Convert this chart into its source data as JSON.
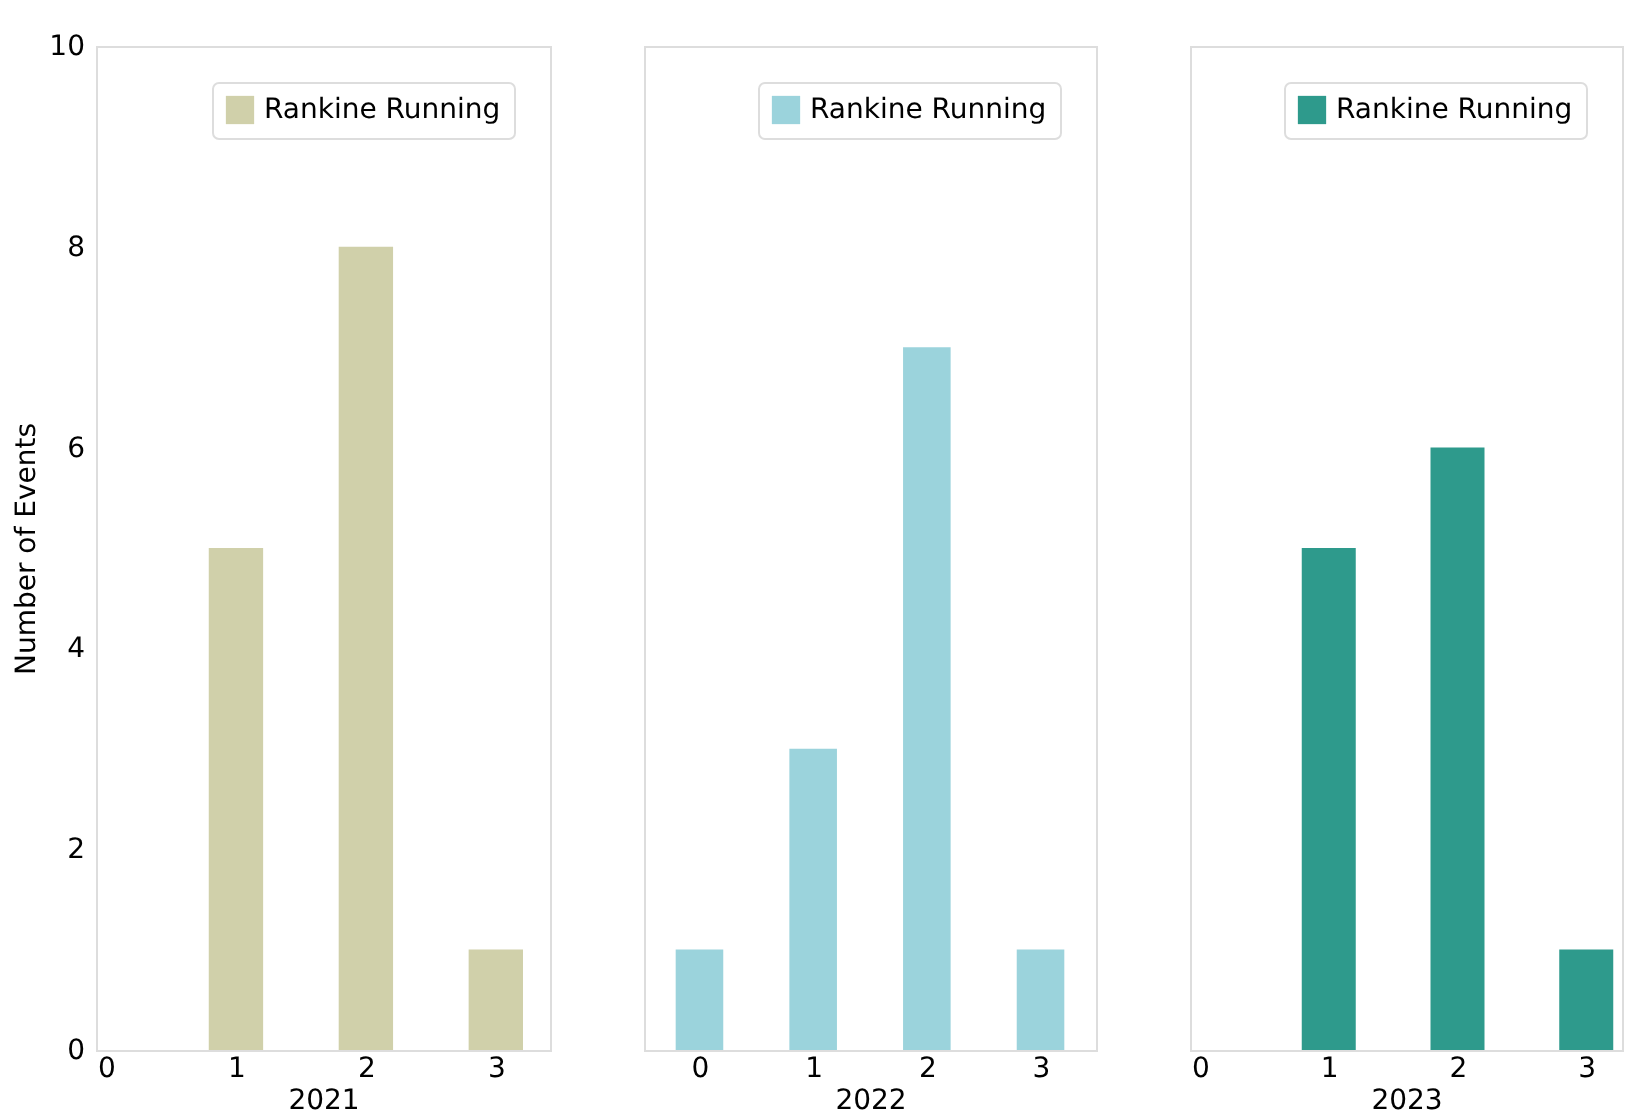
{
  "chart_data": [
    {
      "type": "bar",
      "xlabel": "2021",
      "ylabel": "Number of Events",
      "x": [
        1,
        2,
        3
      ],
      "series": [
        {
          "name": "Rankine Running",
          "color": "#d0d0aa",
          "values": [
            5,
            8,
            1
          ]
        }
      ],
      "xlim": [
        0,
        3.34
      ],
      "xticks": [
        0,
        1,
        2,
        3
      ],
      "ylim": [
        0,
        10
      ],
      "yticks": [
        0,
        2,
        4,
        6,
        8,
        10
      ],
      "legend": "top right",
      "grid": false
    },
    {
      "type": "bar",
      "xlabel": "2022",
      "x": [
        0,
        1,
        2,
        3
      ],
      "series": [
        {
          "name": "Rankine Running",
          "color": "#9bd3dc",
          "values": [
            1,
            3,
            7,
            1
          ]
        }
      ],
      "xlim": [
        -0.4,
        3.4
      ],
      "xticks": [
        0,
        1,
        2,
        3
      ],
      "ylim": [
        0,
        10
      ],
      "legend": "top right",
      "grid": false,
      "tick_labels": "x"
    },
    {
      "type": "bar",
      "xlabel": "2023",
      "x": [
        1,
        2,
        3
      ],
      "series": [
        {
          "name": "Rankine Running",
          "color": "#2e9a8c",
          "values": [
            5,
            6,
            1
          ]
        }
      ],
      "xlim": [
        0,
        3.2
      ],
      "xticks": [
        0,
        1,
        2,
        3
      ],
      "ylim": [
        0,
        10
      ],
      "legend": "top right",
      "grid": false,
      "tick_labels": "x"
    }
  ]
}
